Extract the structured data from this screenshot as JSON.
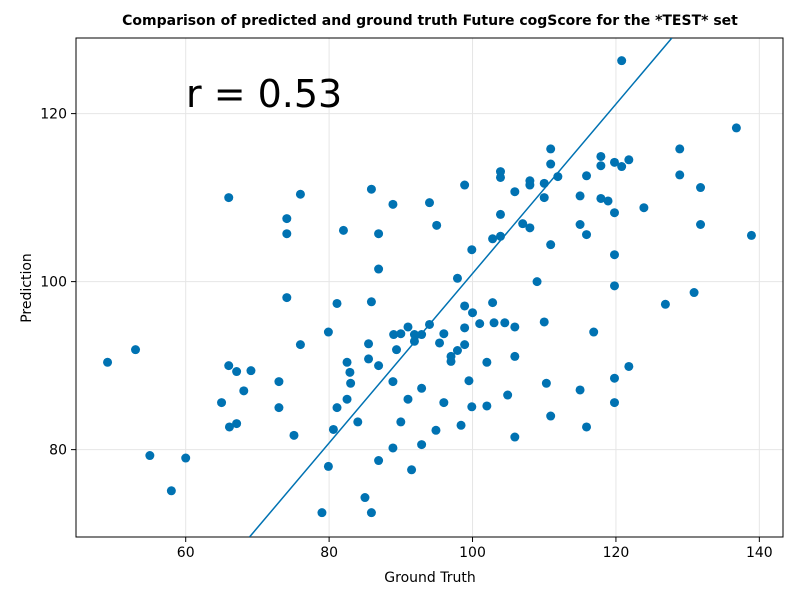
{
  "chart_data": {
    "type": "scatter",
    "title": "Comparison of predicted and ground truth Future cogScore for the *TEST* set",
    "x_label": "Ground Truth",
    "y_label": "Prediction",
    "annotation": "r = 0.53",
    "color": "#0072b2",
    "grid": true,
    "xlim": [
      44.7,
      143.3
    ],
    "ylim": [
      69.6,
      129.0
    ],
    "xticks": [
      60,
      80,
      100,
      120,
      140
    ],
    "yticks": [
      80,
      100,
      120
    ],
    "x": [
      49.1,
      53.0,
      55.0,
      58.0,
      60.0,
      65.0,
      66.0,
      66.0,
      66.1,
      67.1,
      67.1,
      68.1,
      69.1,
      73.0,
      73.0,
      74.1,
      74.1,
      74.1,
      75.1,
      76.0,
      76.0,
      79.9,
      79.0,
      79.9,
      80.6,
      81.1,
      81.1,
      82.0,
      82.5,
      82.5,
      82.9,
      83.0,
      84.0,
      85.0,
      85.5,
      85.5,
      85.9,
      85.9,
      85.9,
      86.9,
      86.9,
      86.9,
      86.9,
      88.9,
      88.9,
      88.9,
      89.0,
      89.4,
      90.0,
      90.0,
      91.0,
      91.0,
      91.5,
      91.9,
      91.9,
      92.9,
      92.9,
      92.9,
      94.0,
      94.0,
      94.9,
      95.0,
      95.4,
      96.0,
      96.0,
      97.0,
      97.0,
      97.9,
      97.9,
      98.4,
      98.9,
      98.9,
      98.9,
      98.9,
      99.5,
      99.9,
      99.9,
      100.0,
      101.0,
      102.0,
      102.0,
      102.8,
      102.8,
      103.0,
      103.9,
      103.9,
      103.9,
      103.9,
      104.5,
      104.9,
      105.9,
      105.9,
      105.9,
      105.9,
      107.0,
      108.0,
      108.0,
      108.0,
      109.0,
      110.0,
      110.0,
      110.0,
      110.3,
      110.9,
      110.9,
      110.9,
      110.9,
      111.9,
      115.0,
      115.0,
      115.0,
      115.9,
      115.9,
      115.9,
      116.9,
      117.9,
      117.9,
      117.9,
      118.9,
      119.8,
      119.8,
      119.8,
      119.8,
      119.8,
      119.8,
      120.8,
      120.8,
      121.8,
      121.8,
      123.9,
      126.9,
      128.9,
      128.9,
      130.9,
      131.8,
      131.8,
      136.8,
      138.9
    ],
    "values": [
      90.4,
      91.9,
      79.3,
      75.1,
      79.0,
      85.6,
      90.0,
      110.0,
      82.7,
      83.1,
      89.3,
      87.0,
      89.4,
      88.1,
      85.0,
      107.5,
      105.7,
      98.1,
      81.7,
      92.5,
      110.4,
      94.0,
      72.5,
      78.0,
      82.4,
      97.4,
      85.0,
      106.1,
      86.0,
      90.4,
      89.2,
      87.9,
      83.3,
      74.3,
      92.6,
      90.8,
      111.0,
      97.6,
      72.5,
      105.7,
      101.5,
      90.0,
      78.7,
      109.2,
      88.1,
      80.2,
      93.7,
      91.9,
      93.8,
      83.3,
      86.0,
      94.6,
      77.6,
      92.9,
      93.7,
      93.7,
      87.3,
      80.6,
      94.9,
      109.4,
      82.3,
      106.7,
      92.7,
      93.8,
      85.6,
      91.1,
      90.5,
      100.4,
      91.8,
      82.9,
      111.5,
      97.1,
      94.5,
      92.5,
      88.2,
      103.8,
      85.1,
      96.3,
      95.0,
      85.2,
      90.4,
      105.1,
      97.5,
      95.1,
      113.1,
      112.4,
      108.0,
      105.4,
      95.1,
      86.5,
      110.7,
      94.6,
      91.1,
      81.5,
      106.9,
      112.0,
      111.5,
      106.4,
      100.0,
      111.7,
      110.0,
      95.2,
      87.9,
      115.8,
      114.0,
      104.4,
      84.0,
      112.5,
      110.2,
      106.8,
      87.1,
      112.6,
      105.6,
      82.7,
      94.0,
      114.9,
      113.8,
      109.9,
      109.6,
      114.2,
      108.2,
      103.2,
      99.5,
      88.5,
      85.6,
      113.7,
      126.3,
      114.5,
      89.9,
      108.8,
      97.3,
      115.8,
      112.7,
      98.7,
      111.2,
      106.8,
      118.3,
      105.5
    ],
    "fit_line": {
      "x": [
        68.9,
        127.8
      ],
      "y": [
        69.6,
        129.0
      ],
      "color": "#0072b2"
    }
  }
}
